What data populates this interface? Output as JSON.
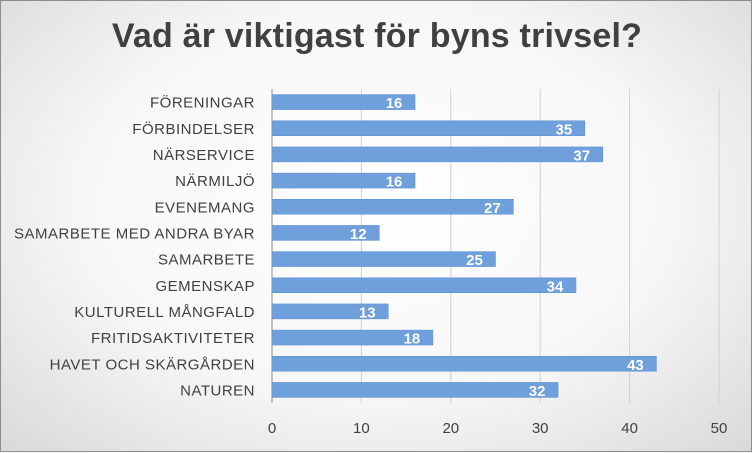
{
  "title": "Vad är viktigast för byns trivsel?",
  "colors": {
    "bar": "#6fa0dc",
    "bar_border": "#5b8fd0",
    "gridline": "#d0d0d0",
    "axis_line": "#8c8c8c",
    "text": "#404040",
    "data_label": "#ffffff"
  },
  "chart_data": {
    "type": "bar",
    "orientation": "horizontal",
    "categories": [
      "FÖRENINGAR",
      "FÖRBINDELSER",
      "NÄRSERVICE",
      "NÄRMILJÖ",
      "EVENEMANG",
      "SAMARBETE MED ANDRA BYAR",
      "SAMARBETE",
      "GEMENSKAP",
      "KULTURELL MÅNGFALD",
      "FRITIDSAKTIVITETER",
      "HAVET OCH SKÄRGÅRDEN",
      "NATUREN"
    ],
    "values": [
      16,
      35,
      37,
      16,
      27,
      12,
      25,
      34,
      13,
      18,
      43,
      32
    ],
    "xlim": [
      0,
      50
    ],
    "xticks": [
      0,
      10,
      20,
      30,
      40,
      50
    ],
    "grid": true,
    "data_labels": true,
    "legend": "none"
  }
}
